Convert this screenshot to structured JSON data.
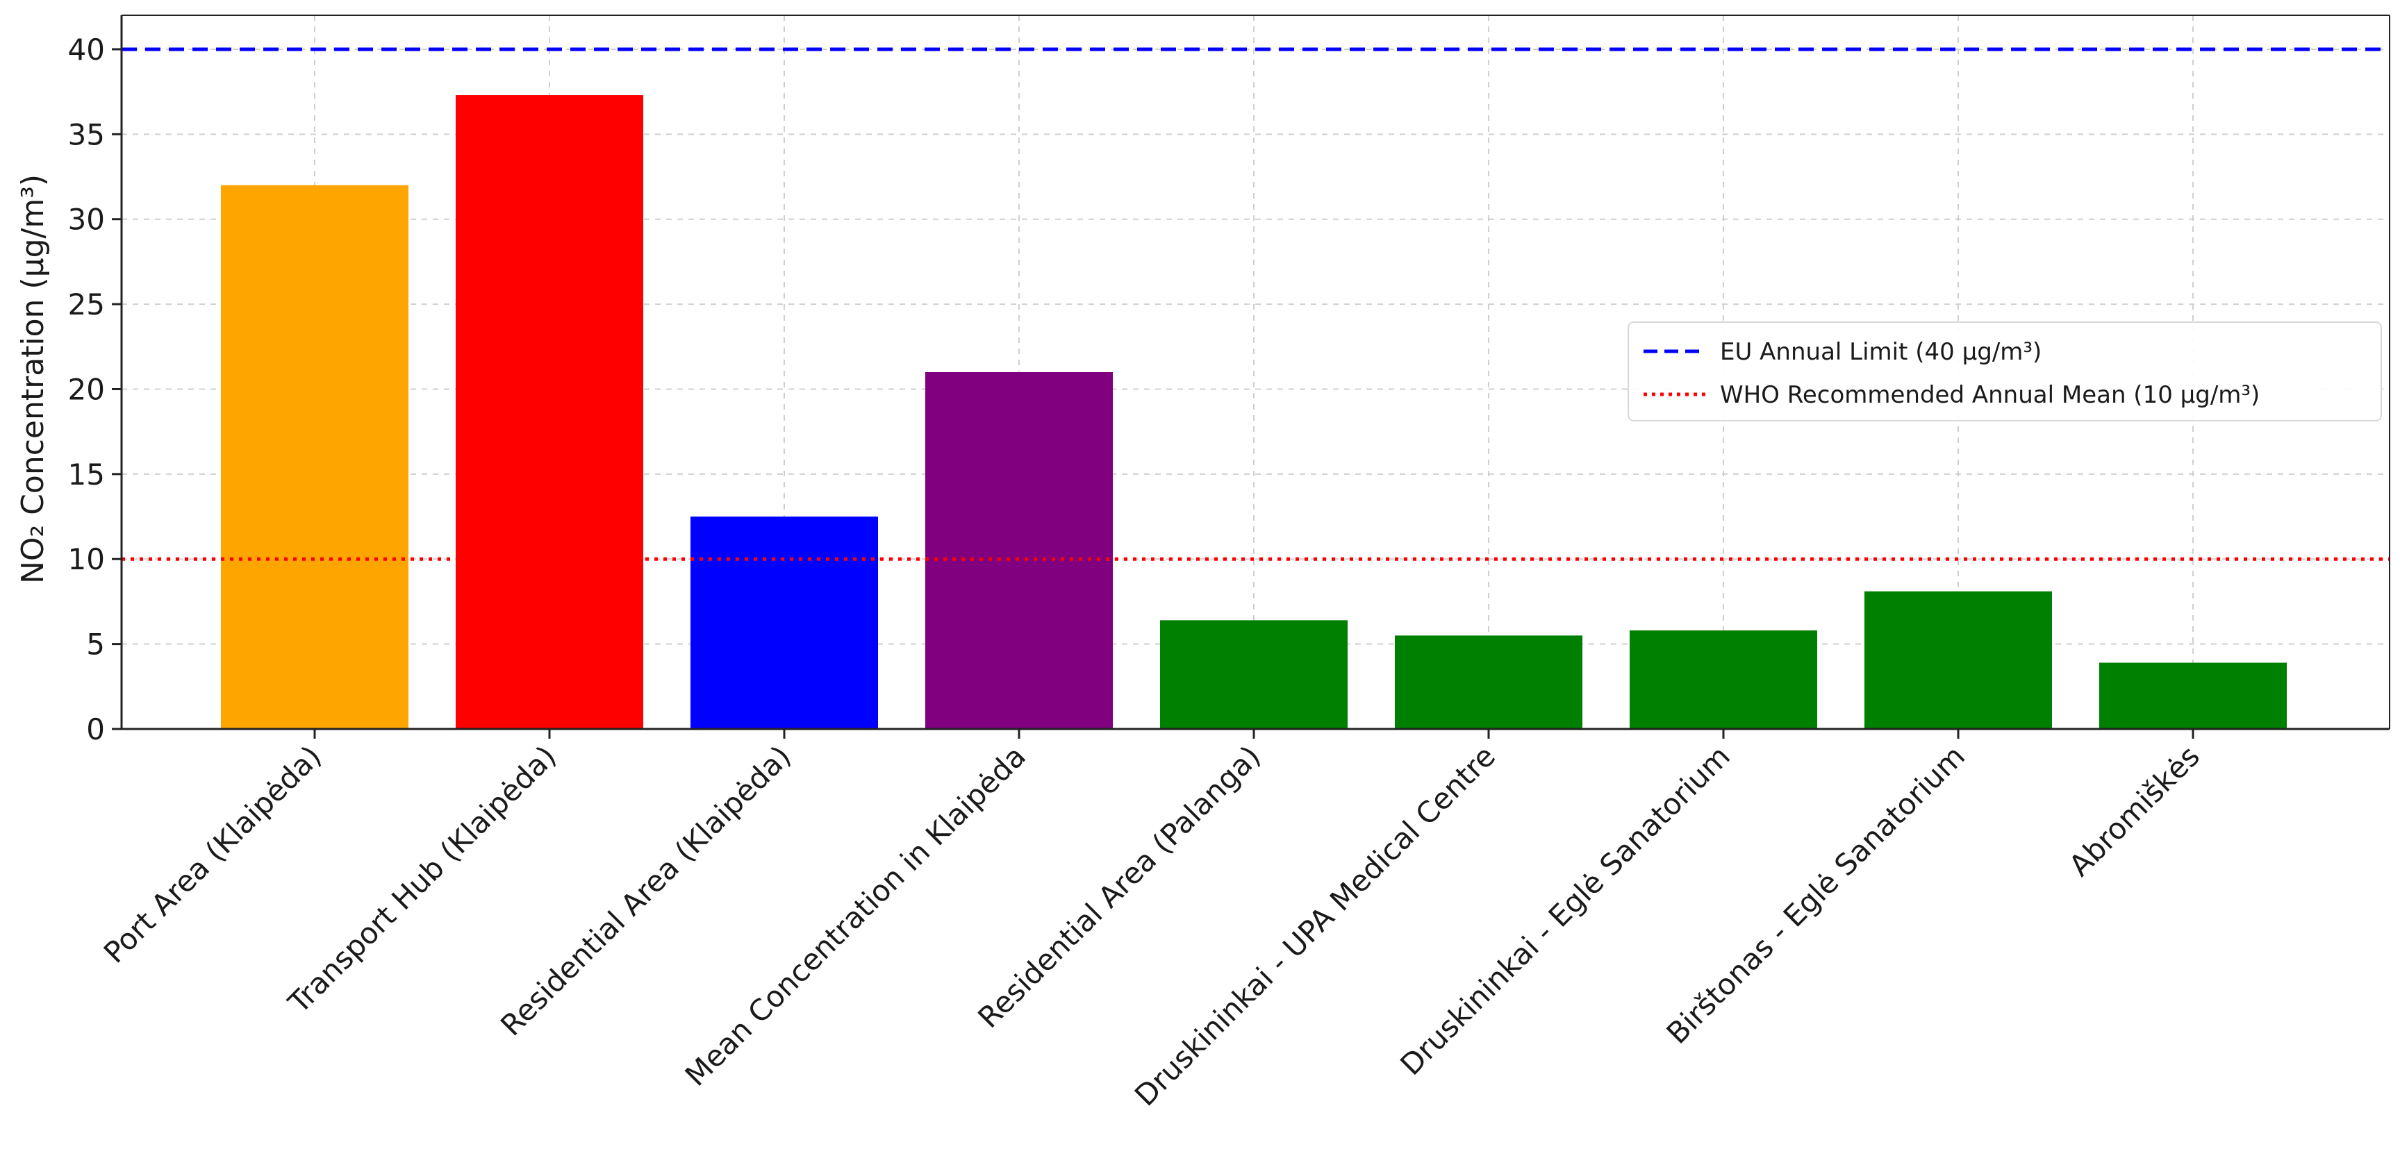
{
  "chart_data": {
    "type": "bar",
    "ylabel": "NO₂ Concentration (μg/m³)",
    "xlabel": "",
    "ylim": [
      0,
      42
    ],
    "yticks": [
      0,
      5,
      10,
      15,
      20,
      25,
      30,
      35,
      40
    ],
    "grid": true,
    "legend_position": "right",
    "categories": [
      "Port Area (Klaipėda)",
      "Transport Hub (Klaipėda)",
      "Residential Area (Klaipėda)",
      "Mean Concentration in Klaipėda",
      "Residential Area (Palanga)",
      "Druskininkai - UPA Medical Centre",
      "Druskininkai - Eglė Sanatorium",
      "Birštonas - Eglė Sanatorium",
      "Abromiškės"
    ],
    "values": [
      32.0,
      37.3,
      12.5,
      21.0,
      6.4,
      5.5,
      5.8,
      8.1,
      3.9
    ],
    "bar_colors": [
      "#FFA500",
      "#FF0000",
      "#0000FF",
      "#800080",
      "#008000",
      "#008000",
      "#008000",
      "#008000",
      "#008000"
    ],
    "reference_lines": [
      {
        "label": "EU Annual Limit (40 μg/m³)",
        "value": 40,
        "color": "#0000FF",
        "style": "dashed"
      },
      {
        "label": "WHO Recommended Annual Mean (10 μg/m³)",
        "value": 10,
        "color": "#FF0000",
        "style": "dotted"
      }
    ]
  }
}
